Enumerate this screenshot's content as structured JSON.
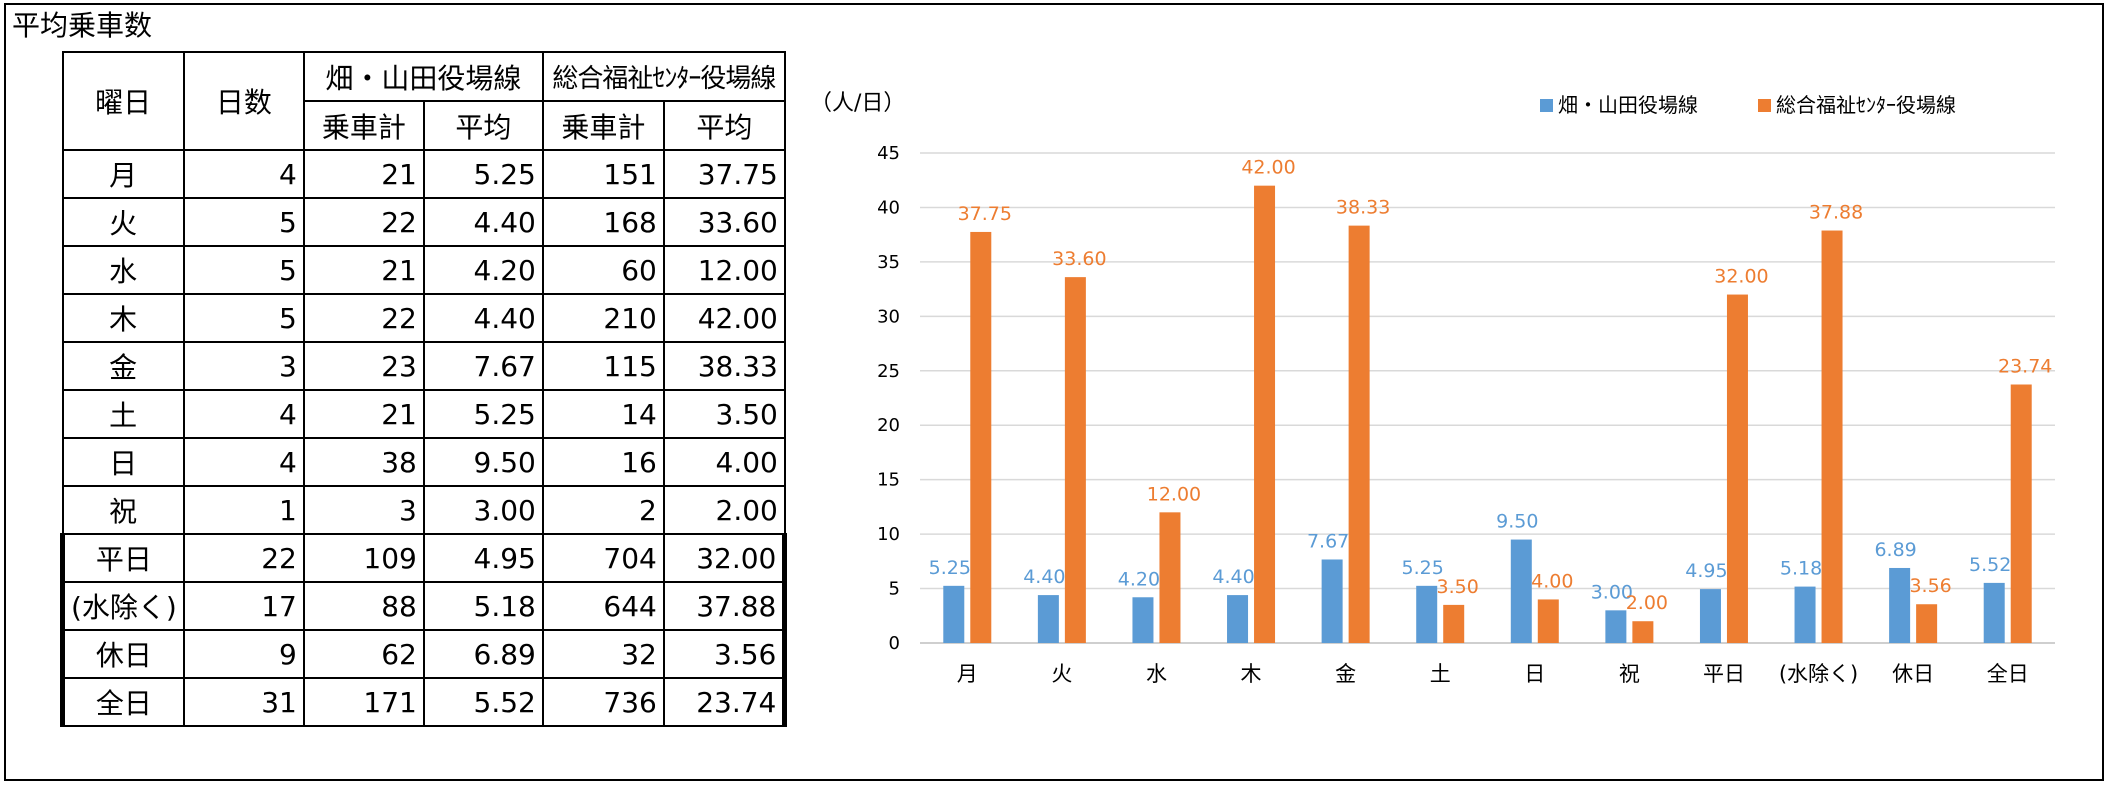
{
  "title": "平均乗車数",
  "table": {
    "header_weekday": "曜日",
    "header_days": "日数",
    "header_line1": "畑・山田役場線",
    "header_line2": "総合福祉ｾﾝﾀｰ役場線",
    "header_total": "乗車計",
    "header_avg": "平均",
    "rows": [
      {
        "label": "月",
        "days": "4",
        "l1_total": "21",
        "l1_avg": "5.25",
        "l2_total": "151",
        "l2_avg": "37.75"
      },
      {
        "label": "火",
        "days": "5",
        "l1_total": "22",
        "l1_avg": "4.40",
        "l2_total": "168",
        "l2_avg": "33.60"
      },
      {
        "label": "水",
        "days": "5",
        "l1_total": "21",
        "l1_avg": "4.20",
        "l2_total": "60",
        "l2_avg": "12.00"
      },
      {
        "label": "木",
        "days": "5",
        "l1_total": "22",
        "l1_avg": "4.40",
        "l2_total": "210",
        "l2_avg": "42.00"
      },
      {
        "label": "金",
        "days": "3",
        "l1_total": "23",
        "l1_avg": "7.67",
        "l2_total": "115",
        "l2_avg": "38.33"
      },
      {
        "label": "土",
        "days": "4",
        "l1_total": "21",
        "l1_avg": "5.25",
        "l2_total": "14",
        "l2_avg": "3.50"
      },
      {
        "label": "日",
        "days": "4",
        "l1_total": "38",
        "l1_avg": "9.50",
        "l2_total": "16",
        "l2_avg": "4.00"
      },
      {
        "label": "祝",
        "days": "1",
        "l1_total": "3",
        "l1_avg": "3.00",
        "l2_total": "2",
        "l2_avg": "2.00"
      },
      {
        "label": "平日",
        "days": "22",
        "l1_total": "109",
        "l1_avg": "4.95",
        "l2_total": "704",
        "l2_avg": "32.00"
      },
      {
        "label": "(水除く)",
        "days": "17",
        "l1_total": "88",
        "l1_avg": "5.18",
        "l2_total": "644",
        "l2_avg": "37.88"
      },
      {
        "label": "休日",
        "days": "9",
        "l1_total": "62",
        "l1_avg": "6.89",
        "l2_total": "32",
        "l2_avg": "3.56"
      },
      {
        "label": "全日",
        "days": "31",
        "l1_total": "171",
        "l1_avg": "5.52",
        "l2_total": "736",
        "l2_avg": "23.74"
      }
    ]
  },
  "chart_data": {
    "type": "bar",
    "ylabel": "（人/日）",
    "categories": [
      "月",
      "火",
      "水",
      "木",
      "金",
      "土",
      "日",
      "祝",
      "平日",
      "(水除く)",
      "休日",
      "全日"
    ],
    "series": [
      {
        "name": "畑・山田役場線",
        "color": "#5B9BD5",
        "values": [
          5.25,
          4.4,
          4.2,
          4.4,
          7.67,
          5.25,
          9.5,
          3.0,
          4.95,
          5.18,
          6.89,
          5.52
        ],
        "labels": [
          "5.25",
          "4.40",
          "4.20",
          "4.40",
          "7.67",
          "5.25",
          "9.50",
          "3.00",
          "4.95",
          "5.18",
          "6.89",
          "5.52"
        ]
      },
      {
        "name": "総合福祉ｾﾝﾀｰ役場線",
        "color": "#ED7D31",
        "values": [
          37.75,
          33.6,
          12.0,
          42.0,
          38.33,
          3.5,
          4.0,
          2.0,
          32.0,
          37.88,
          3.56,
          23.74
        ],
        "labels": [
          "37.75",
          "33.60",
          "12.00",
          "42.00",
          "38.33",
          "3.50",
          "4.00",
          "2.00",
          "32.00",
          "37.88",
          "3.56",
          "23.74"
        ]
      }
    ],
    "ylim": [
      0,
      45
    ],
    "yticks": [
      "0",
      "5",
      "10",
      "15",
      "20",
      "25",
      "30",
      "35",
      "40",
      "45"
    ],
    "grid": true,
    "legend": "top-right",
    "gridColor": "#D9D9D9"
  }
}
